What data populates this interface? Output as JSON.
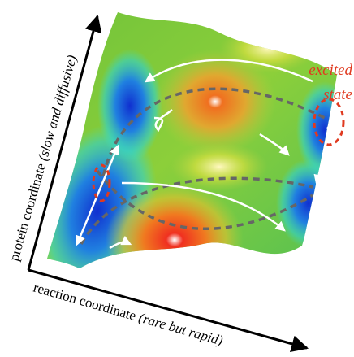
{
  "labels": {
    "excited_state": [
      "excited",
      "state"
    ],
    "protein_axis": {
      "text": "protein coordinate",
      "note": "(slow and diffusive)"
    },
    "reaction_axis": {
      "text": "reaction coordinate",
      "note": "(rare but rapid)"
    }
  }
}
